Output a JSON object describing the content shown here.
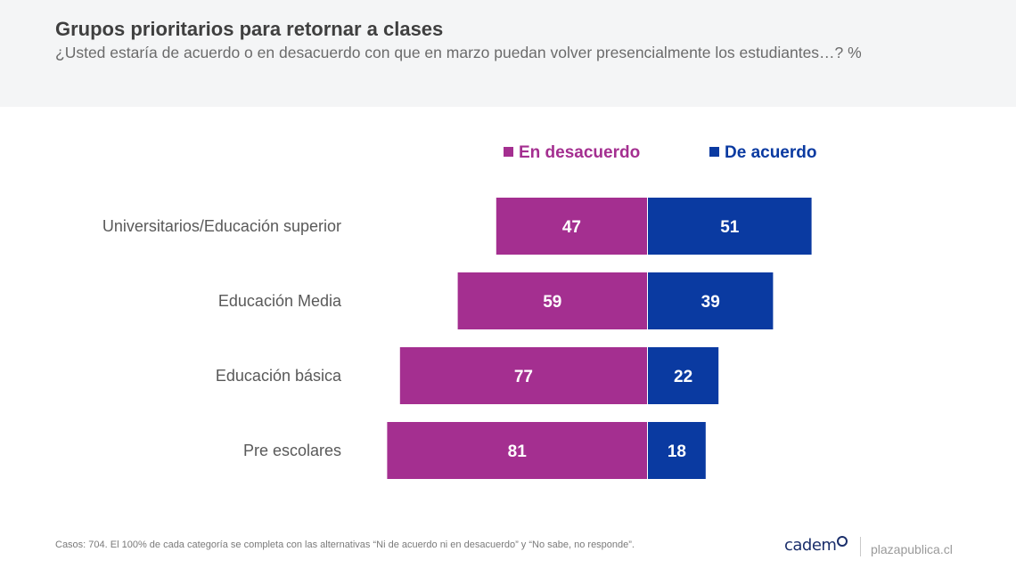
{
  "header": {
    "title": "Grupos prioritarios para retornar a clases",
    "subtitle": "¿Usted estaría de acuerdo o en desacuerdo con que en marzo puedan volver presencialmente los estudiantes…? %"
  },
  "colors": {
    "desacuerdo": "#a42f90",
    "acuerdo": "#0a3aa1",
    "label_text": "#595959"
  },
  "chart_data": {
    "type": "bar",
    "orientation": "horizontal-diverging",
    "categories": [
      "Universitarios/Educación superior",
      "Educación Media",
      "Educación básica",
      "Pre escolares"
    ],
    "series": [
      {
        "name": "En desacuerdo",
        "values": [
          47,
          59,
          77,
          81
        ]
      },
      {
        "name": "De acuerdo",
        "values": [
          51,
          39,
          22,
          18
        ]
      }
    ],
    "legend_position": "top",
    "grid": false
  },
  "footer": {
    "note": "Casos: 704. El 100% de cada categoría se completa con las alternativas “Ni de acuerdo ni en desacuerdo” y “No sabe, no responde”.",
    "brand": "cadem",
    "site": "plazapublica.cl"
  }
}
